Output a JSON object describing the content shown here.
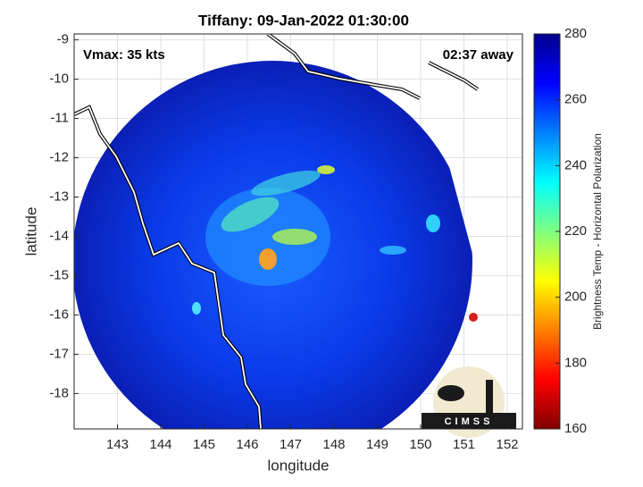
{
  "chart_data": {
    "type": "image",
    "title": "Tiffany: 09-Jan-2022 01:30:00",
    "annotations": [
      "Vmax: 35 kts",
      "02:37 away"
    ],
    "x_label": "longitude",
    "y_label": "latitude",
    "xlim": [
      142,
      152.35
    ],
    "xticks": [
      143,
      144,
      145,
      146,
      147,
      148,
      149,
      150,
      151,
      152
    ],
    "ylim": [
      -18.9,
      -8.85
    ],
    "yticks": [
      -18,
      -17,
      -16,
      -15,
      -14,
      -13,
      -12,
      -11,
      -10,
      -9
    ],
    "grid": true,
    "colorbar": {
      "label": "Brightness Temp - Horizontal Polarization",
      "lim": [
        160,
        280
      ],
      "ticks": [
        160,
        180,
        200,
        220,
        240,
        260,
        280
      ]
    },
    "logo": "CIMSS"
  }
}
